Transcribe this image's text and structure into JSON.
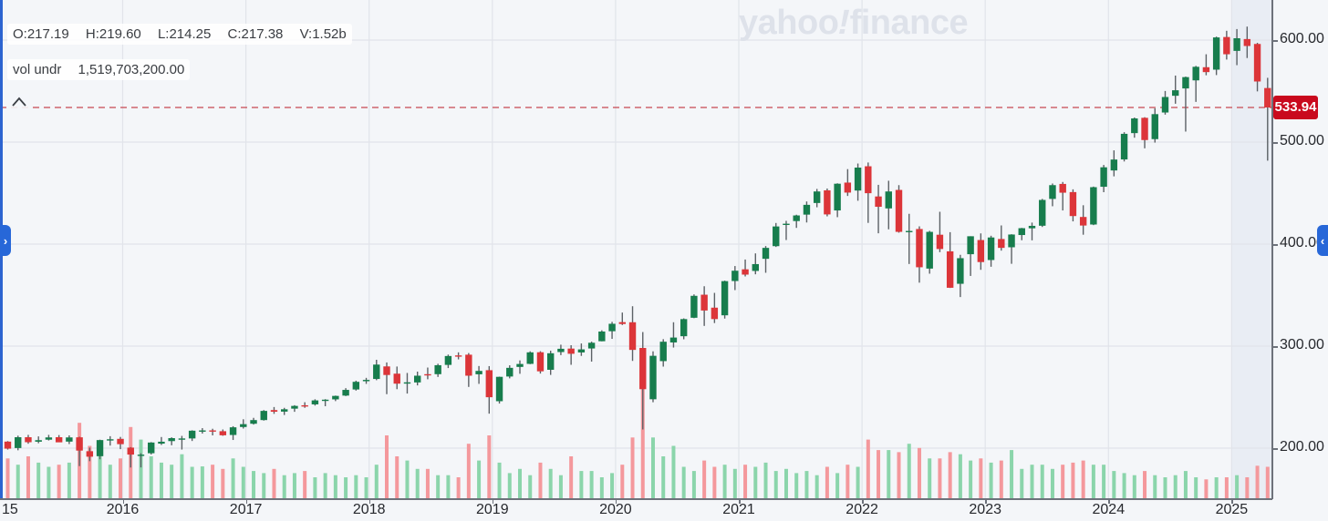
{
  "watermark": {
    "part1": "yahoo",
    "bang": "!",
    "part2": "finance"
  },
  "legend": {
    "ohlc": {
      "o": "O:217.19",
      "h": "H:219.60",
      "l": "L:214.25",
      "c": "C:217.38",
      "v": "V:1.52b"
    },
    "volume_row": {
      "label": "vol undr",
      "value": "1,519,703,200.00"
    }
  },
  "price_marker": {
    "value": "533.94"
  },
  "pan_handles": {
    "left_glyph": "›",
    "right_glyph": "‹"
  },
  "chart_data": {
    "type": "candlestick",
    "interval": "monthly",
    "title": "",
    "legend_position": "top-left",
    "grid": true,
    "y_axis": {
      "ticks": [
        "600.00",
        "500.00",
        "400.00",
        "300.00",
        "200.00"
      ],
      "tick_values": [
        600,
        500,
        400,
        300,
        200
      ],
      "range": [
        147,
        640
      ],
      "side": "right"
    },
    "x_axis": {
      "ticks": [
        "15",
        "2016",
        "2017",
        "2018",
        "2019",
        "2020",
        "2021",
        "2022",
        "2023",
        "2024",
        "2025"
      ]
    },
    "price_line": {
      "value": 533.94,
      "style": "dashed",
      "color": "#c74852"
    },
    "colors": {
      "up": "#177d4d",
      "down": "#dc3539",
      "vol_up": "#8bd5ab",
      "vol_down": "#f4989c",
      "wick": "#5c6166",
      "grid": "#e1e4ea",
      "axis": "#6d727b",
      "future_strip": "#e9edf4",
      "tag_bg": "#c9091d",
      "accent_blue": "#2767d8"
    },
    "volume_unit": "billions_of_shares",
    "candle_fields": [
      "month",
      "open",
      "high",
      "low",
      "close",
      "volume_b"
    ],
    "candles": [
      [
        "2015-01",
        206.4,
        206.9,
        198.6,
        199.5,
        1.9
      ],
      [
        "2015-02",
        200.1,
        212.2,
        197.9,
        210.7,
        1.6
      ],
      [
        "2015-03",
        210.7,
        213.0,
        204.3,
        205.8,
        2.0
      ],
      [
        "2015-04",
        206.3,
        211.5,
        204.8,
        207.8,
        1.7
      ],
      [
        "2015-05",
        208.3,
        213.0,
        207.5,
        210.5,
        1.5
      ],
      [
        "2015-06",
        210.7,
        212.8,
        206.9,
        205.7,
        1.6
      ],
      [
        "2015-07",
        206.4,
        212.5,
        204.0,
        210.5,
        1.7
      ],
      [
        "2015-08",
        210.6,
        211.2,
        182.4,
        197.6,
        3.6
      ],
      [
        "2015-09",
        197.0,
        200.5,
        187.2,
        191.6,
        2.5
      ],
      [
        "2015-10",
        192.1,
        208.3,
        189.1,
        207.9,
        2.2
      ],
      [
        "2015-11",
        208.2,
        211.7,
        202.5,
        208.7,
        1.6
      ],
      [
        "2015-12",
        209.1,
        211.0,
        199.0,
        203.9,
        1.9
      ],
      [
        "2016-01",
        200.5,
        201.0,
        181.0,
        193.7,
        3.4
      ],
      [
        "2016-02",
        192.5,
        195.0,
        181.1,
        193.6,
        2.8
      ],
      [
        "2016-03",
        195.0,
        205.9,
        193.8,
        205.5,
        2.0
      ],
      [
        "2016-04",
        204.4,
        210.9,
        203.1,
        206.3,
        1.7
      ],
      [
        "2016-05",
        206.9,
        210.6,
        202.8,
        209.8,
        1.6
      ],
      [
        "2016-06",
        209.1,
        212.0,
        198.6,
        209.5,
        2.1
      ],
      [
        "2016-07",
        209.5,
        217.5,
        207.0,
        217.1,
        1.5
      ],
      [
        "2016-08",
        217.19,
        219.6,
        214.25,
        217.38,
        1.52
      ],
      [
        "2016-09",
        217.4,
        219.0,
        212.5,
        216.3,
        1.6
      ],
      [
        "2016-10",
        216.6,
        218.3,
        212.1,
        212.6,
        1.4
      ],
      [
        "2016-11",
        212.9,
        221.5,
        208.0,
        220.4,
        1.9
      ],
      [
        "2016-12",
        220.7,
        228.3,
        219.2,
        223.5,
        1.5
      ],
      [
        "2017-01",
        223.9,
        229.7,
        223.1,
        227.5,
        1.3
      ],
      [
        "2017-02",
        227.5,
        237.3,
        227.0,
        236.5,
        1.2
      ],
      [
        "2017-03",
        237.3,
        240.3,
        233.6,
        235.7,
        1.4
      ],
      [
        "2017-04",
        235.8,
        239.5,
        232.5,
        238.1,
        1.1
      ],
      [
        "2017-05",
        238.7,
        242.1,
        235.6,
        241.4,
        1.2
      ],
      [
        "2017-06",
        242.0,
        245.0,
        239.5,
        241.8,
        1.3
      ],
      [
        "2017-07",
        242.9,
        247.9,
        241.7,
        246.8,
        1.0
      ],
      [
        "2017-08",
        247.5,
        248.0,
        241.1,
        247.5,
        1.2
      ],
      [
        "2017-09",
        247.8,
        251.5,
        246.1,
        251.2,
        1.1
      ],
      [
        "2017-10",
        251.5,
        258.8,
        251.0,
        257.1,
        1.0
      ],
      [
        "2017-11",
        257.5,
        266.1,
        256.4,
        265.0,
        1.1
      ],
      [
        "2017-12",
        265.6,
        268.9,
        263.0,
        266.9,
        1.0
      ],
      [
        "2018-01",
        267.8,
        286.6,
        266.6,
        281.9,
        1.6
      ],
      [
        "2018-02",
        280.1,
        284.0,
        252.9,
        271.7,
        3.0
      ],
      [
        "2018-03",
        273.0,
        280.0,
        257.8,
        263.2,
        2.0
      ],
      [
        "2018-04",
        263.8,
        273.7,
        253.5,
        264.5,
        1.8
      ],
      [
        "2018-05",
        264.4,
        275.0,
        261.5,
        271.0,
        1.4
      ],
      [
        "2018-06",
        272.5,
        279.0,
        267.5,
        271.3,
        1.4
      ],
      [
        "2018-07",
        272.5,
        282.7,
        269.8,
        281.3,
        1.1
      ],
      [
        "2018-08",
        281.6,
        291.7,
        278.5,
        290.3,
        1.1
      ],
      [
        "2018-09",
        290.9,
        293.9,
        287.0,
        290.7,
        1.0
      ],
      [
        "2018-10",
        291.6,
        293.2,
        260.0,
        271.0,
        2.6
      ],
      [
        "2018-11",
        272.4,
        280.5,
        263.0,
        275.7,
        1.8
      ],
      [
        "2018-12",
        276.4,
        280.4,
        233.8,
        249.9,
        3.0
      ],
      [
        "2019-01",
        246.0,
        270.1,
        243.7,
        269.9,
        1.7
      ],
      [
        "2019-02",
        270.2,
        281.2,
        268.4,
        278.7,
        1.2
      ],
      [
        "2019-03",
        279.6,
        286.0,
        272.9,
        282.5,
        1.4
      ],
      [
        "2019-04",
        282.6,
        294.9,
        282.3,
        293.9,
        1.1
      ],
      [
        "2019-05",
        294.0,
        295.0,
        273.1,
        275.3,
        1.7
      ],
      [
        "2019-06",
        276.8,
        295.5,
        271.8,
        293.0,
        1.4
      ],
      [
        "2019-07",
        294.2,
        301.4,
        291.2,
        297.4,
        1.1
      ],
      [
        "2019-08",
        297.6,
        300.9,
        281.7,
        292.5,
        2.0
      ],
      [
        "2019-09",
        293.8,
        302.6,
        290.4,
        296.8,
        1.3
      ],
      [
        "2019-10",
        297.7,
        304.4,
        284.8,
        303.3,
        1.3
      ],
      [
        "2019-11",
        304.8,
        315.5,
        304.7,
        314.3,
        1.0
      ],
      [
        "2019-12",
        314.6,
        323.8,
        307.1,
        321.9,
        1.2
      ],
      [
        "2020-01",
        323.5,
        332.9,
        320.7,
        321.7,
        1.6
      ],
      [
        "2020-02",
        323.4,
        339.1,
        285.5,
        296.3,
        2.9
      ],
      [
        "2020-03",
        298.2,
        313.8,
        218.3,
        257.8,
        5.6
      ],
      [
        "2020-04",
        247.9,
        294.9,
        245.0,
        290.5,
        2.9
      ],
      [
        "2020-05",
        285.3,
        306.8,
        279.9,
        304.3,
        2.0
      ],
      [
        "2020-06",
        303.6,
        323.4,
        298.6,
        308.4,
        2.5
      ],
      [
        "2020-07",
        309.7,
        327.2,
        306.7,
        326.5,
        1.5
      ],
      [
        "2020-08",
        327.8,
        350.7,
        327.4,
        349.3,
        1.3
      ],
      [
        "2020-09",
        350.4,
        358.7,
        319.8,
        334.9,
        1.8
      ],
      [
        "2020-10",
        337.7,
        352.2,
        322.6,
        326.5,
        1.5
      ],
      [
        "2020-11",
        330.2,
        364.2,
        327.0,
        363.7,
        1.6
      ],
      [
        "2020-12",
        363.8,
        378.5,
        354.9,
        373.9,
        1.4
      ],
      [
        "2021-01",
        375.3,
        384.9,
        368.3,
        370.1,
        1.6
      ],
      [
        "2021-02",
        373.7,
        390.9,
        370.4,
        380.4,
        1.5
      ],
      [
        "2021-03",
        385.6,
        398.1,
        371.9,
        396.3,
        1.7
      ],
      [
        "2021-04",
        398.0,
        420.7,
        397.2,
        417.3,
        1.3
      ],
      [
        "2021-05",
        419.4,
        422.8,
        404.0,
        420.0,
        1.4
      ],
      [
        "2021-06",
        422.6,
        428.8,
        415.9,
        428.1,
        1.2
      ],
      [
        "2021-07",
        428.9,
        441.8,
        421.2,
        438.5,
        1.3
      ],
      [
        "2021-08",
        440.3,
        454.1,
        436.1,
        451.6,
        1.1
      ],
      [
        "2021-09",
        452.7,
        454.5,
        427.2,
        429.1,
        1.5
      ],
      [
        "2021-10",
        433.0,
        459.6,
        426.4,
        459.2,
        1.2
      ],
      [
        "2021-11",
        460.3,
        473.5,
        447.2,
        450.5,
        1.6
      ],
      [
        "2021-12",
        452.5,
        479.0,
        442.5,
        475.0,
        1.5
      ],
      [
        "2022-01",
        476.3,
        480.0,
        420.8,
        449.9,
        2.8
      ],
      [
        "2022-02",
        446.7,
        458.1,
        410.6,
        436.6,
        2.3
      ],
      [
        "2022-03",
        435.0,
        462.1,
        414.5,
        451.6,
        2.3
      ],
      [
        "2022-04",
        453.1,
        457.8,
        411.2,
        412.0,
        2.2
      ],
      [
        "2022-05",
        412.1,
        429.7,
        380.5,
        412.9,
        2.6
      ],
      [
        "2022-06",
        414.8,
        417.4,
        362.2,
        377.3,
        2.4
      ],
      [
        "2022-07",
        376.0,
        413.0,
        371.0,
        412.0,
        1.9
      ],
      [
        "2022-08",
        409.2,
        431.7,
        392.1,
        395.2,
        1.9
      ],
      [
        "2022-09",
        392.9,
        411.7,
        357.0,
        357.2,
        2.2
      ],
      [
        "2022-10",
        361.1,
        389.5,
        348.1,
        386.2,
        2.1
      ],
      [
        "2022-11",
        390.1,
        407.7,
        368.8,
        407.7,
        1.8
      ],
      [
        "2022-12",
        404.0,
        410.5,
        374.8,
        382.4,
        1.9
      ],
      [
        "2023-01",
        384.4,
        408.2,
        377.8,
        406.5,
        1.7
      ],
      [
        "2023-02",
        405.0,
        418.3,
        393.6,
        396.3,
        1.8
      ],
      [
        "2023-03",
        396.9,
        409.7,
        380.7,
        409.4,
        2.3
      ],
      [
        "2023-04",
        408.9,
        415.9,
        403.8,
        415.6,
        1.4
      ],
      [
        "2023-05",
        415.5,
        421.1,
        403.7,
        417.9,
        1.6
      ],
      [
        "2023-06",
        418.0,
        444.3,
        416.8,
        443.3,
        1.6
      ],
      [
        "2023-07",
        444.3,
        459.4,
        437.1,
        457.8,
        1.4
      ],
      [
        "2023-08",
        459.0,
        460.9,
        433.0,
        450.4,
        1.6
      ],
      [
        "2023-09",
        451.0,
        453.7,
        422.3,
        427.5,
        1.7
      ],
      [
        "2023-10",
        426.6,
        438.1,
        409.2,
        418.2,
        1.8
      ],
      [
        "2023-11",
        419.2,
        456.4,
        418.6,
        455.8,
        1.6
      ],
      [
        "2023-12",
        456.2,
        477.6,
        450.9,
        475.3,
        1.6
      ],
      [
        "2024-01",
        472.2,
        491.9,
        466.4,
        482.9,
        1.3
      ],
      [
        "2024-02",
        483.0,
        509.7,
        481.0,
        508.1,
        1.2
      ],
      [
        "2024-03",
        508.8,
        524.1,
        504.3,
        523.2,
        1.1
      ],
      [
        "2024-04",
        523.8,
        524.4,
        493.9,
        502.0,
        1.3
      ],
      [
        "2024-05",
        502.9,
        533.1,
        499.5,
        527.4,
        1.1
      ],
      [
        "2024-06",
        529.0,
        550.1,
        526.9,
        544.2,
        1.0
      ],
      [
        "2024-07",
        545.4,
        565.2,
        537.6,
        550.8,
        1.1
      ],
      [
        "2024-08",
        552.6,
        564.2,
        510.3,
        563.7,
        1.3
      ],
      [
        "2024-09",
        560.5,
        574.7,
        539.4,
        573.8,
        1.0
      ],
      [
        "2024-10",
        573.4,
        586.1,
        565.5,
        568.6,
        0.9
      ],
      [
        "2024-11",
        571.0,
        603.4,
        565.7,
        602.6,
        1.0
      ],
      [
        "2024-12",
        603.0,
        609.1,
        580.9,
        586.1,
        1.0
      ],
      [
        "2025-01",
        589.4,
        610.8,
        575.4,
        601.8,
        1.1
      ],
      [
        "2025-02",
        601.0,
        613.2,
        582.4,
        594.2,
        1.0
      ],
      [
        "2025-03",
        596.2,
        597.3,
        549.7,
        559.4,
        1.55
      ],
      [
        "2025-04",
        553.0,
        563.0,
        481.8,
        533.94,
        1.5
      ]
    ]
  }
}
